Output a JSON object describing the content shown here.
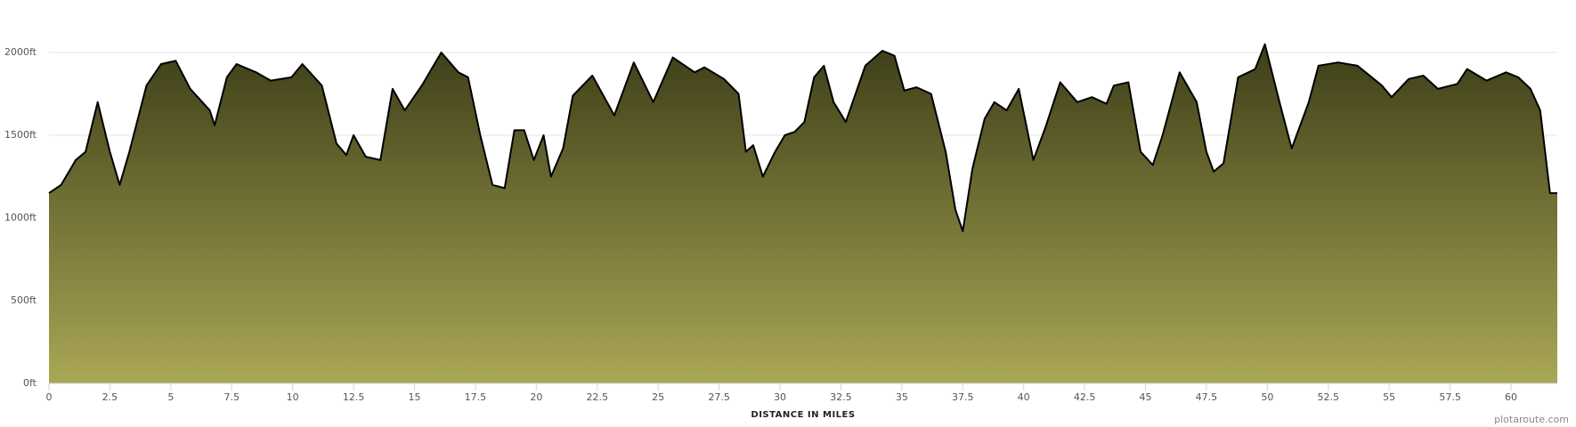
{
  "chart_data": {
    "type": "area",
    "xlabel": "DISTANCE IN MILES",
    "watermark": "plotaroute.com",
    "x": [
      0,
      0.5,
      1.1,
      1.5,
      2.0,
      2.5,
      2.9,
      3.3,
      4.0,
      4.6,
      5.2,
      5.8,
      6.6,
      6.8,
      7.3,
      7.7,
      8.5,
      9.1,
      9.95,
      10.4,
      11.2,
      11.8,
      12.2,
      12.5,
      13.0,
      13.6,
      14.1,
      14.6,
      15.3,
      16.1,
      16.8,
      17.2,
      17.7,
      18.2,
      18.7,
      19.1,
      19.5,
      19.9,
      20.3,
      20.6,
      21.1,
      21.5,
      22.3,
      23.2,
      24.0,
      24.8,
      25.6,
      26.5,
      26.9,
      27.7,
      28.3,
      28.6,
      28.9,
      29.3,
      29.8,
      30.2,
      30.6,
      31.0,
      31.4,
      31.8,
      32.2,
      32.7,
      33.5,
      34.2,
      34.7,
      35.1,
      35.6,
      36.2,
      36.8,
      37.2,
      37.5,
      37.9,
      38.4,
      38.8,
      39.3,
      39.8,
      40.4,
      40.9,
      41.5,
      42.2,
      42.8,
      43.4,
      43.7,
      44.3,
      44.8,
      45.3,
      45.7,
      46.4,
      47.1,
      47.5,
      47.8,
      48.2,
      48.8,
      49.5,
      49.9,
      50.5,
      51.0,
      51.7,
      52.1,
      52.9,
      53.7,
      54.7,
      55.1,
      55.8,
      56.4,
      57.0,
      57.8,
      58.2,
      59.0,
      59.8,
      60.3,
      60.8,
      61.2,
      61.6,
      61.9
    ],
    "values": [
      1150,
      1200,
      1350,
      1400,
      1700,
      1400,
      1200,
      1400,
      1800,
      1930,
      1950,
      1780,
      1650,
      1560,
      1850,
      1930,
      1880,
      1830,
      1850,
      1930,
      1800,
      1450,
      1380,
      1500,
      1370,
      1350,
      1780,
      1650,
      1800,
      2000,
      1880,
      1850,
      1500,
      1200,
      1180,
      1530,
      1530,
      1350,
      1500,
      1250,
      1420,
      1740,
      1860,
      1620,
      1940,
      1700,
      1970,
      1880,
      1910,
      1840,
      1750,
      1400,
      1440,
      1250,
      1400,
      1500,
      1520,
      1580,
      1850,
      1920,
      1700,
      1580,
      1920,
      2010,
      1980,
      1770,
      1790,
      1750,
      1400,
      1050,
      920,
      1300,
      1600,
      1700,
      1650,
      1780,
      1350,
      1550,
      1820,
      1700,
      1730,
      1690,
      1800,
      1820,
      1400,
      1320,
      1500,
      1880,
      1700,
      1400,
      1280,
      1330,
      1850,
      1900,
      2050,
      1700,
      1420,
      1700,
      1920,
      1940,
      1920,
      1800,
      1730,
      1840,
      1860,
      1780,
      1810,
      1900,
      1830,
      1880,
      1850,
      1780,
      1650,
      1150,
      1150
    ],
    "fill_top": "#3d3e18",
    "fill_bottom": "#aaa756",
    "line_color": "#000000",
    "xlim": [
      0,
      61.9
    ],
    "ylim": [
      0,
      2000
    ],
    "xticks": [
      0,
      2.5,
      5,
      7.5,
      10,
      12.5,
      15,
      17.5,
      20,
      22.5,
      25,
      27.5,
      30,
      32.5,
      35,
      37.5,
      40,
      42.5,
      45,
      47.5,
      50,
      52.5,
      55,
      57.5,
      60
    ],
    "yticks": [
      {
        "value": 0,
        "label": "0ft"
      },
      {
        "value": 500,
        "label": "500ft"
      },
      {
        "value": 1000,
        "label": "1000ft"
      },
      {
        "value": 1500,
        "label": "1500ft"
      },
      {
        "value": 2000,
        "label": "2000ft"
      }
    ],
    "grid": true
  }
}
